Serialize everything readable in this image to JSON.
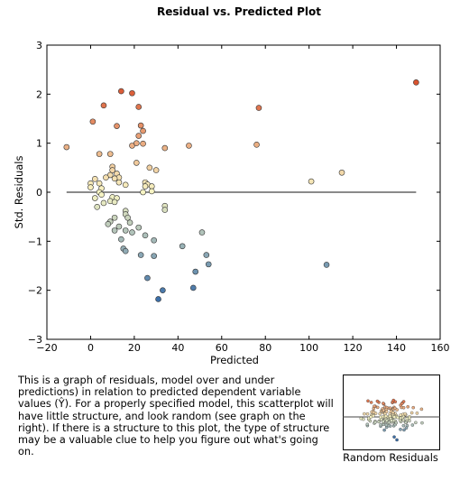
{
  "chart_data": {
    "type": "scatter",
    "title": "Residual vs. Predicted Plot",
    "xlabel": "Predicted",
    "ylabel": "Std. Residuals",
    "xlim": [
      -20,
      160
    ],
    "ylim": [
      -3,
      3
    ],
    "xticks": [
      -20,
      0,
      20,
      40,
      60,
      80,
      100,
      120,
      140,
      160
    ],
    "yticks": [
      -3,
      -2,
      -1,
      0,
      1,
      2,
      3
    ],
    "xtick_labels": [
      "−20",
      "0",
      "20",
      "40",
      "60",
      "80",
      "100",
      "120",
      "140",
      "160"
    ],
    "ytick_labels": [
      "−3",
      "−2",
      "−1",
      "0",
      "1",
      "2",
      "3"
    ],
    "reference_line": {
      "y": 0,
      "x_from": -11,
      "x_to": 149
    },
    "grid": false,
    "color_scale": {
      "low": "#3a6ea8",
      "mid": "#f8f5c4",
      "high": "#d9532f"
    },
    "points": [
      {
        "x": -11,
        "y": 0.92
      },
      {
        "x": 1,
        "y": 1.44
      },
      {
        "x": 6,
        "y": 1.77
      },
      {
        "x": 14,
        "y": 2.06
      },
      {
        "x": 19,
        "y": 2.02
      },
      {
        "x": 22,
        "y": 1.74
      },
      {
        "x": 12,
        "y": 1.35
      },
      {
        "x": 23,
        "y": 1.36
      },
      {
        "x": 24,
        "y": 1.25
      },
      {
        "x": 22,
        "y": 1.15
      },
      {
        "x": 24,
        "y": 0.99
      },
      {
        "x": 19,
        "y": 0.95
      },
      {
        "x": 21,
        "y": 1.0
      },
      {
        "x": 34,
        "y": 0.9
      },
      {
        "x": 45,
        "y": 0.95
      },
      {
        "x": 76,
        "y": 0.97
      },
      {
        "x": 77,
        "y": 1.72
      },
      {
        "x": 149,
        "y": 2.24
      },
      {
        "x": 4,
        "y": 0.78
      },
      {
        "x": 9,
        "y": 0.78
      },
      {
        "x": 21,
        "y": 0.6
      },
      {
        "x": 27,
        "y": 0.5
      },
      {
        "x": 30,
        "y": 0.45
      },
      {
        "x": 10,
        "y": 0.52
      },
      {
        "x": 10,
        "y": 0.45
      },
      {
        "x": 12,
        "y": 0.38
      },
      {
        "x": 13,
        "y": 0.3
      },
      {
        "x": 9,
        "y": 0.35
      },
      {
        "x": 11,
        "y": 0.28
      },
      {
        "x": 7,
        "y": 0.3
      },
      {
        "x": 2,
        "y": 0.27
      },
      {
        "x": 0,
        "y": 0.18
      },
      {
        "x": 4,
        "y": 0.18
      },
      {
        "x": 13,
        "y": 0.2
      },
      {
        "x": 16,
        "y": 0.15
      },
      {
        "x": 25,
        "y": 0.2
      },
      {
        "x": 26,
        "y": 0.16
      },
      {
        "x": 25,
        "y": 0.12
      },
      {
        "x": 28,
        "y": 0.12
      },
      {
        "x": 0,
        "y": 0.1
      },
      {
        "x": 5,
        "y": 0.08
      },
      {
        "x": 4,
        "y": 0.0
      },
      {
        "x": 24,
        "y": 0.0
      },
      {
        "x": 28,
        "y": 0.02
      },
      {
        "x": 5,
        "y": -0.05
      },
      {
        "x": 2,
        "y": -0.12
      },
      {
        "x": 10,
        "y": -0.1
      },
      {
        "x": 12,
        "y": -0.12
      },
      {
        "x": 6,
        "y": -0.22
      },
      {
        "x": 9,
        "y": -0.18
      },
      {
        "x": 11,
        "y": -0.2
      },
      {
        "x": 3,
        "y": -0.3
      },
      {
        "x": 34,
        "y": -0.28
      },
      {
        "x": 34,
        "y": -0.36
      },
      {
        "x": 16,
        "y": -0.38
      },
      {
        "x": 16,
        "y": -0.45
      },
      {
        "x": 17,
        "y": -0.52
      },
      {
        "x": 11,
        "y": -0.52
      },
      {
        "x": 18,
        "y": -0.62
      },
      {
        "x": 9,
        "y": -0.6
      },
      {
        "x": 8,
        "y": -0.65
      },
      {
        "x": 13,
        "y": -0.7
      },
      {
        "x": 22,
        "y": -0.72
      },
      {
        "x": 16,
        "y": -0.78
      },
      {
        "x": 11,
        "y": -0.78
      },
      {
        "x": 19,
        "y": -0.82
      },
      {
        "x": 25,
        "y": -0.88
      },
      {
        "x": 29,
        "y": -0.98
      },
      {
        "x": 14,
        "y": -0.96
      },
      {
        "x": 15,
        "y": -1.15
      },
      {
        "x": 16,
        "y": -1.2
      },
      {
        "x": 42,
        "y": -1.1
      },
      {
        "x": 23,
        "y": -1.28
      },
      {
        "x": 29,
        "y": -1.3
      },
      {
        "x": 51,
        "y": -0.82
      },
      {
        "x": 53,
        "y": -1.28
      },
      {
        "x": 54,
        "y": -1.47
      },
      {
        "x": 108,
        "y": -1.48
      },
      {
        "x": 48,
        "y": -1.62
      },
      {
        "x": 26,
        "y": -1.75
      },
      {
        "x": 47,
        "y": -1.95
      },
      {
        "x": 33,
        "y": -2.0
      },
      {
        "x": 31,
        "y": -2.18
      },
      {
        "x": 101,
        "y": 0.22
      },
      {
        "x": 115,
        "y": 0.4
      }
    ]
  },
  "description": "This is a graph of residuals, model over and under predictions) in relation to predicted dependent variable values (Ŷ).  For a properly specified model, this scatterplot will have little structure, and look random (see graph on the right).  If there is a structure to this plot, the type of structure may be a valuable clue to help you figure out what's going on.",
  "mini_chart": {
    "label": "Random Residuals",
    "point_count": 170,
    "reference_line": true
  }
}
